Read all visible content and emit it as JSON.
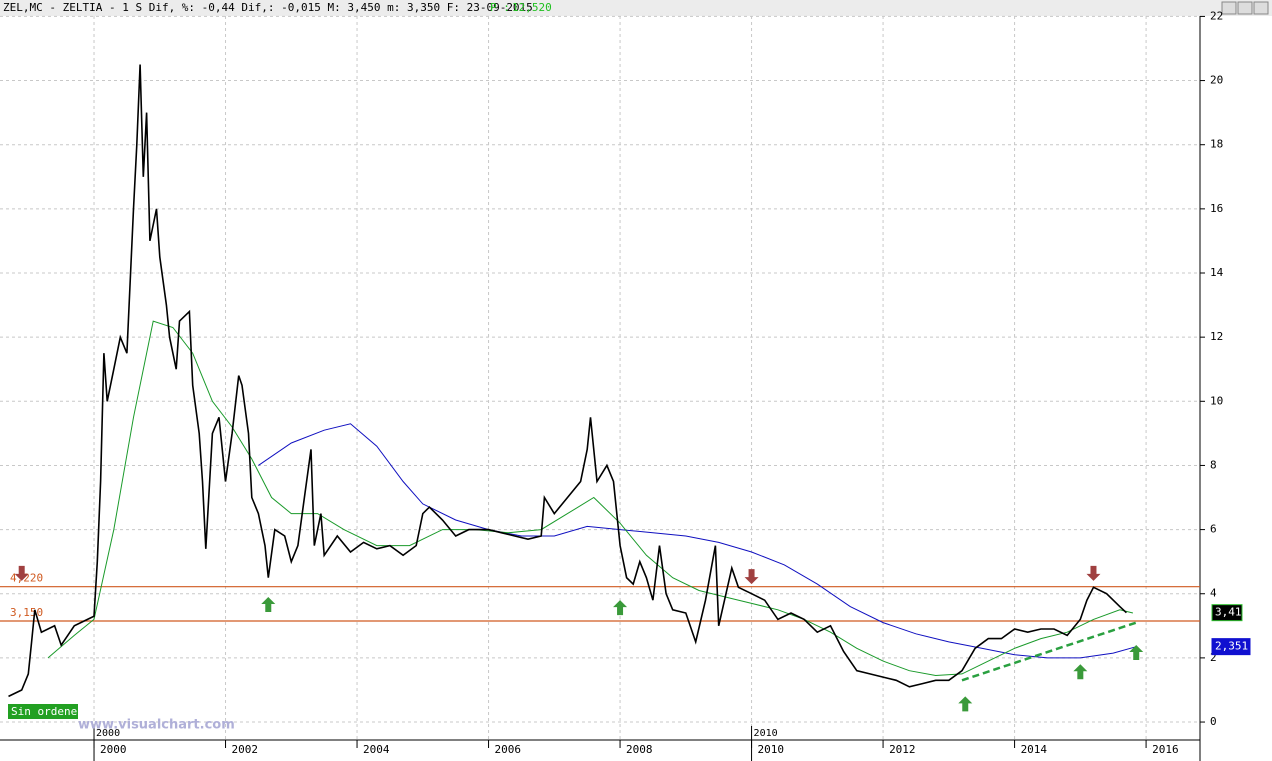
{
  "chart_data": {
    "type": "line",
    "header": {
      "text": "ZEL,MC - ZELTIA -  1 S Dif, %: -0,44 Dif,: -0,015 M: 3,450 m: 3,350 F: 23-09-2015",
      "p_label": "P :",
      "p_value": "12,520"
    },
    "xlim": [
      1998.57,
      2016.82
    ],
    "ylim": [
      -0.56,
      22.2
    ],
    "xticks": [
      2000,
      2002,
      2004,
      2006,
      2008,
      2010,
      2012,
      2014,
      2016
    ],
    "yticks": [
      0,
      2,
      4,
      6,
      8,
      10,
      12,
      14,
      16,
      18,
      20,
      22
    ],
    "grid": true,
    "period_labels": [
      {
        "value": 2000,
        "label": "2000"
      },
      {
        "value": 2010,
        "label": "2010"
      }
    ],
    "series": [
      {
        "color": "#000000",
        "x": [
          1998.7,
          1998.9,
          1999.0,
          1999.05,
          1999.1,
          1999.2,
          1999.4,
          1999.5,
          1999.7,
          1999.9,
          2000.0,
          2000.05,
          2000.1,
          2000.15,
          2000.2,
          2000.3,
          2000.4,
          2000.5,
          2000.6,
          2000.65,
          2000.7,
          2000.75,
          2000.8,
          2000.85,
          2000.95,
          2001.0,
          2001.1,
          2001.15,
          2001.25,
          2001.3,
          2001.45,
          2001.5,
          2001.6,
          2001.65,
          2001.7,
          2001.8,
          2001.9,
          2002.0,
          2002.1,
          2002.2,
          2002.25,
          2002.35,
          2002.4,
          2002.5,
          2002.6,
          2002.65,
          2002.75,
          2002.9,
          2003.0,
          2003.1,
          2003.2,
          2003.3,
          2003.35,
          2003.45,
          2003.5,
          2003.7,
          2003.9,
          2004.1,
          2004.3,
          2004.5,
          2004.7,
          2004.9,
          2005.0,
          2005.1,
          2005.3,
          2005.5,
          2005.7,
          2006.0,
          2006.2,
          2006.4,
          2006.6,
          2006.8,
          2006.85,
          2007.0,
          2007.2,
          2007.4,
          2007.5,
          2007.55,
          2007.65,
          2007.8,
          2007.9,
          2008.0,
          2008.1,
          2008.2,
          2008.3,
          2008.4,
          2008.5,
          2008.6,
          2008.7,
          2008.8,
          2009.0,
          2009.15,
          2009.3,
          2009.45,
          2009.5,
          2009.7,
          2009.8,
          2010.0,
          2010.2,
          2010.4,
          2010.6,
          2010.8,
          2011.0,
          2011.2,
          2011.4,
          2011.6,
          2011.8,
          2012.0,
          2012.2,
          2012.4,
          2012.6,
          2012.8,
          2013.0,
          2013.2,
          2013.4,
          2013.6,
          2013.8,
          2014.0,
          2014.2,
          2014.4,
          2014.6,
          2014.8,
          2015.0,
          2015.1,
          2015.2,
          2015.4,
          2015.6,
          2015.7
        ],
        "values": [
          0.8,
          1.0,
          1.5,
          2.5,
          3.5,
          2.8,
          3.0,
          2.4,
          3.0,
          3.2,
          3.3,
          5.0,
          7.5,
          11.5,
          10,
          11,
          12,
          11.5,
          16,
          18,
          20.5,
          17,
          19,
          15,
          16,
          14.5,
          13,
          12,
          11,
          12.5,
          12.8,
          10.5,
          9,
          7.5,
          5.4,
          9,
          9.5,
          7.5,
          9,
          10.8,
          10.5,
          9,
          7,
          6.5,
          5.5,
          4.5,
          6,
          5.8,
          5,
          5.5,
          7,
          8.5,
          5.5,
          6.5,
          5.2,
          5.8,
          5.3,
          5.6,
          5.4,
          5.5,
          5.2,
          5.5,
          6.5,
          6.7,
          6.3,
          5.8,
          6.0,
          6.0,
          5.9,
          5.8,
          5.7,
          5.8,
          7.0,
          6.5,
          7.0,
          7.5,
          8.5,
          9.5,
          7.5,
          8.0,
          7.5,
          5.5,
          4.5,
          4.3,
          5.0,
          4.5,
          3.8,
          5.5,
          4.0,
          3.5,
          3.4,
          2.5,
          3.8,
          5.5,
          3.0,
          4.8,
          4.2,
          4.0,
          3.8,
          3.2,
          3.4,
          3.2,
          2.8,
          3.0,
          2.2,
          1.6,
          1.5,
          1.4,
          1.3,
          1.1,
          1.2,
          1.3,
          1.3,
          1.6,
          2.3,
          2.6,
          2.6,
          2.9,
          2.8,
          2.9,
          2.9,
          2.7,
          3.2,
          3.8,
          4.2,
          4.0,
          3.6,
          3.41
        ]
      },
      {
        "color": "#1a9a2a",
        "x": [
          1999.3,
          1999.7,
          2000.0,
          2000.3,
          2000.6,
          2000.9,
          2001.2,
          2001.5,
          2001.8,
          2002.1,
          2002.4,
          2002.7,
          2003.0,
          2003.4,
          2003.8,
          2004.3,
          2004.8,
          2005.3,
          2005.8,
          2006.3,
          2006.8,
          2007.2,
          2007.6,
          2008.0,
          2008.4,
          2008.8,
          2009.2,
          2009.6,
          2010.0,
          2010.4,
          2010.8,
          2011.2,
          2011.6,
          2012.0,
          2012.4,
          2012.8,
          2013.2,
          2013.6,
          2014.0,
          2014.4,
          2014.8,
          2015.2,
          2015.6,
          2015.8
        ],
        "values": [
          2.0,
          2.7,
          3.2,
          6,
          9.5,
          12.5,
          12.3,
          11.5,
          10,
          9.2,
          8.2,
          7,
          6.5,
          6.5,
          6.0,
          5.5,
          5.5,
          6,
          6,
          5.9,
          6.0,
          6.5,
          7.0,
          6.2,
          5.2,
          4.5,
          4.1,
          3.9,
          3.7,
          3.5,
          3.2,
          2.8,
          2.3,
          1.9,
          1.6,
          1.45,
          1.5,
          1.9,
          2.3,
          2.6,
          2.8,
          3.2,
          3.5,
          3.4
        ]
      },
      {
        "color": "#1010c0",
        "x": [
          2002.5,
          2003.0,
          2003.5,
          2003.9,
          2004.3,
          2004.7,
          2005.0,
          2005.5,
          2006.0,
          2006.5,
          2007.0,
          2007.5,
          2008.0,
          2008.5,
          2009.0,
          2009.5,
          2010.0,
          2010.5,
          2011.0,
          2011.5,
          2012.0,
          2012.5,
          2013.0,
          2013.5,
          2014.0,
          2014.5,
          2015.0,
          2015.5,
          2015.85
        ],
        "values": [
          8.0,
          8.7,
          9.1,
          9.3,
          8.6,
          7.5,
          6.8,
          6.3,
          6.0,
          5.8,
          5.8,
          6.1,
          6.0,
          5.9,
          5.8,
          5.6,
          5.3,
          4.9,
          4.3,
          3.6,
          3.1,
          2.75,
          2.5,
          2.3,
          2.1,
          2.0,
          2.0,
          2.15,
          2.35
        ]
      }
    ],
    "trendline": {
      "color": "#2aa040",
      "x": [
        2013.2,
        2015.85
      ],
      "values": [
        1.3,
        3.1
      ]
    },
    "hlines": [
      {
        "value": 4.22,
        "label": "4,220",
        "color": "#d05a20"
      },
      {
        "value": 3.15,
        "label": "3,150",
        "color": "#d05a20"
      }
    ],
    "price_labels": [
      {
        "value": 3.41,
        "label": "3,41",
        "color": "#000000"
      },
      {
        "value": 2.351,
        "label": "2,351",
        "color": "#1010d0"
      }
    ],
    "arrows": [
      {
        "x": 1998.9,
        "y": 4.4,
        "direction": "down",
        "color": "#a04040"
      },
      {
        "x": 2010.0,
        "y": 4.3,
        "direction": "down",
        "color": "#a04040"
      },
      {
        "x": 2015.2,
        "y": 4.4,
        "direction": "down",
        "color": "#a04040"
      },
      {
        "x": 2002.65,
        "y": 3.9,
        "direction": "up",
        "color": "#3a9a3a"
      },
      {
        "x": 2008.0,
        "y": 3.8,
        "direction": "up",
        "color": "#3a9a3a"
      },
      {
        "x": 2013.25,
        "y": 0.8,
        "direction": "up",
        "color": "#3a9a3a"
      },
      {
        "x": 2015.0,
        "y": 1.8,
        "direction": "up",
        "color": "#3a9a3a"
      },
      {
        "x": 2015.85,
        "y": 2.4,
        "direction": "up",
        "color": "#3a9a3a"
      }
    ],
    "status": "Sin ordenes",
    "watermark": "www.visualchart.com"
  }
}
